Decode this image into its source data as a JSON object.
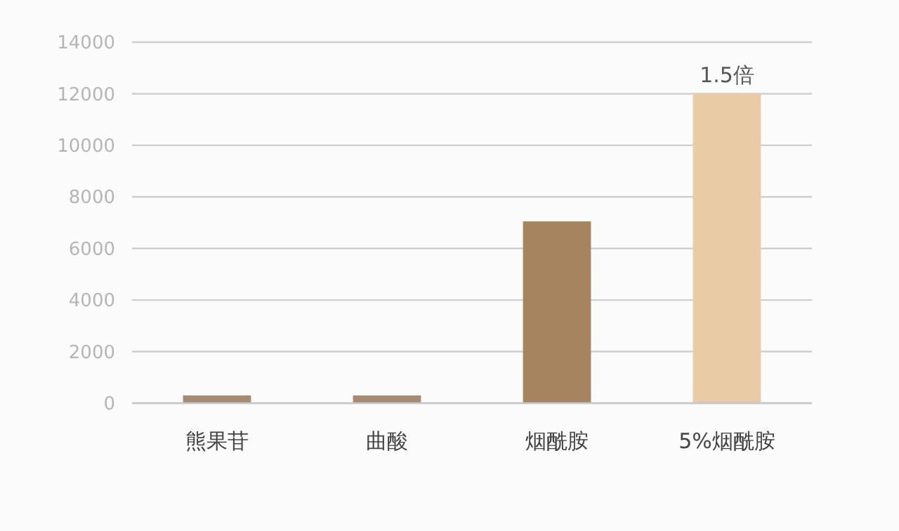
{
  "chart_data": {
    "type": "bar",
    "categories": [
      "熊果苷",
      "曲酸",
      "烟酰胺",
      "5%烟酰胺"
    ],
    "values": [
      300,
      300,
      7050,
      12000
    ],
    "colors": [
      "#a68a72",
      "#a68a72",
      "#a6845f",
      "#e9cba5"
    ],
    "ylim": [
      0,
      14000
    ],
    "yticks": [
      0,
      2000,
      4000,
      6000,
      8000,
      10000,
      12000,
      14000
    ],
    "grid": "y",
    "annotations": [
      {
        "text": "1.5倍",
        "x": "5%烟酰胺",
        "y": 12000
      }
    ]
  }
}
